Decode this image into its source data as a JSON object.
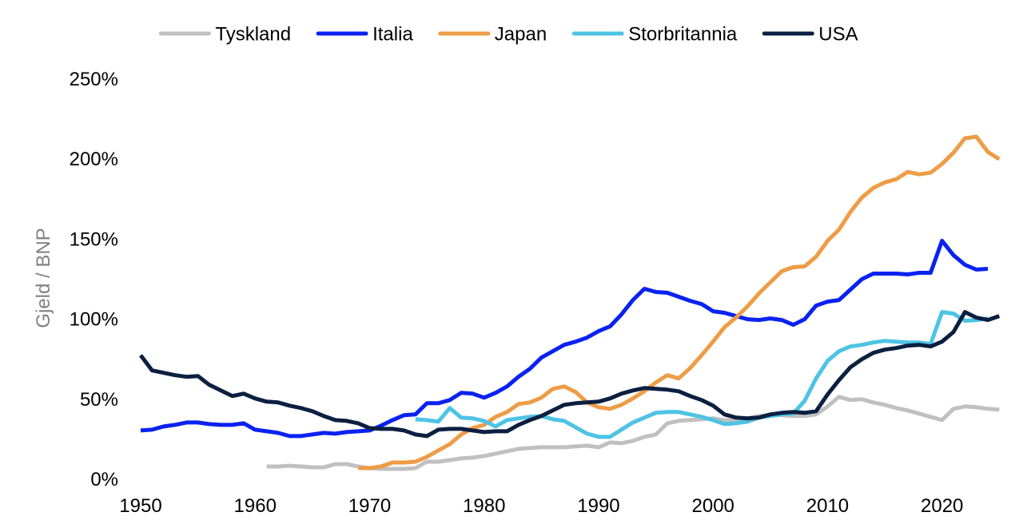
{
  "chart_data": {
    "type": "line",
    "title": "",
    "xlabel": "",
    "ylabel": "Gjeld / BNP",
    "xlim": [
      1950,
      2024
    ],
    "ylim": [
      0,
      250
    ],
    "x_ticks": [
      1950,
      1960,
      1970,
      1980,
      1990,
      2000,
      2010,
      2020
    ],
    "y_ticks": [
      0,
      50,
      100,
      150,
      200,
      250
    ],
    "y_tick_labels": [
      "0%",
      "50%",
      "100%",
      "150%",
      "200%",
      "250%"
    ],
    "grid": false,
    "legend_position": "top",
    "series": [
      {
        "name": "Tyskland",
        "color": "#c0c0c0",
        "x_start": 1961,
        "values": [
          8,
          8,
          8.5,
          8,
          7.5,
          7.5,
          9.5,
          9.5,
          8,
          7,
          6.5,
          6.5,
          6.5,
          7,
          11,
          11,
          12,
          13,
          13.5,
          14.5,
          16,
          17.5,
          19,
          19.5,
          20,
          20,
          20,
          20.5,
          21,
          20,
          23,
          22.5,
          24,
          26.5,
          28,
          35,
          36.5,
          37,
          37.5,
          38,
          37,
          36.5,
          38,
          39.5,
          40,
          40,
          39.5,
          39.5,
          40.5,
          45.5,
          51.5,
          49.5,
          50,
          48,
          46.5,
          44.5,
          43,
          41,
          39,
          37,
          44,
          45.5,
          45,
          44,
          43.5
        ]
      },
      {
        "name": "Italia",
        "color": "#0a22f0",
        "x_start": 1950,
        "values": [
          30.5,
          31,
          33,
          34,
          35.5,
          35.5,
          34.5,
          34,
          34,
          35,
          31,
          30,
          29,
          27,
          27,
          28,
          29,
          28.5,
          29.5,
          30,
          30.5,
          33.5,
          37,
          40,
          40.5,
          47.5,
          47.5,
          49.5,
          54,
          53.5,
          51,
          54,
          58,
          64,
          69,
          76,
          80,
          84,
          86,
          88.5,
          92.5,
          95.5,
          103,
          112,
          119,
          117,
          116.5,
          114,
          111.5,
          109.5,
          105,
          104,
          102,
          100,
          99.5,
          100.5,
          99.5,
          96.5,
          100,
          108.5,
          111,
          112,
          118.5,
          125,
          128.5,
          128.5,
          128.5,
          128,
          129,
          129,
          149,
          140,
          134,
          131,
          131.5
        ]
      },
      {
        "name": "Japan",
        "color": "#ee9c46",
        "x_start": 1969,
        "values": [
          7,
          7,
          8,
          10.5,
          10.5,
          11,
          14,
          18,
          22,
          28,
          32,
          34,
          39,
          42,
          47,
          48,
          51,
          56.5,
          58,
          54.5,
          48,
          45,
          44,
          46.5,
          50.5,
          55,
          60.5,
          65,
          63,
          69.5,
          77.5,
          86,
          95,
          101,
          108,
          116,
          123,
          130,
          132.5,
          133,
          139,
          149,
          156,
          167,
          176,
          182,
          185.5,
          187.5,
          192,
          190.5,
          191.5,
          197,
          204,
          213,
          214,
          204.5,
          200
        ]
      },
      {
        "name": "Storbritannia",
        "color": "#4ec3e4",
        "x_start": 1974,
        "values": [
          37.5,
          37,
          36,
          44.5,
          38.5,
          38,
          36.5,
          33,
          37,
          38,
          39,
          39.5,
          37.5,
          36.5,
          32.5,
          28.5,
          26.5,
          26.5,
          31,
          35.5,
          38.5,
          41.5,
          42,
          42,
          40.5,
          39,
          37,
          34.5,
          35,
          36,
          38.5,
          39.5,
          40.5,
          41,
          49,
          63,
          74,
          80,
          83,
          84,
          85.5,
          86.5,
          86,
          85.5,
          85.5,
          84.5,
          104.5,
          103.5,
          99,
          99.5,
          100.5
        ]
      },
      {
        "name": "USA",
        "color": "#0b1f40",
        "x_start": 1950,
        "values": [
          77.5,
          68,
          66.5,
          65,
          64,
          64.5,
          59,
          55.5,
          52,
          53.5,
          50.5,
          48.5,
          48,
          46,
          44.5,
          42.5,
          39.5,
          37,
          36.5,
          35,
          32,
          31.5,
          31.5,
          30.5,
          28,
          27,
          31,
          31.5,
          31.5,
          30.5,
          29.5,
          30,
          30,
          34,
          37,
          39.5,
          43,
          46.5,
          47.5,
          48,
          48.5,
          50.5,
          53.5,
          55.5,
          57,
          56.5,
          56,
          55,
          52,
          49.5,
          46,
          40.5,
          38.5,
          38,
          38.5,
          40.5,
          41.5,
          42,
          41.5,
          42.5,
          53,
          62,
          70,
          75,
          79,
          81,
          82,
          83.5,
          84,
          83,
          86,
          92,
          104.5,
          101,
          99.5,
          102
        ]
      }
    ]
  }
}
